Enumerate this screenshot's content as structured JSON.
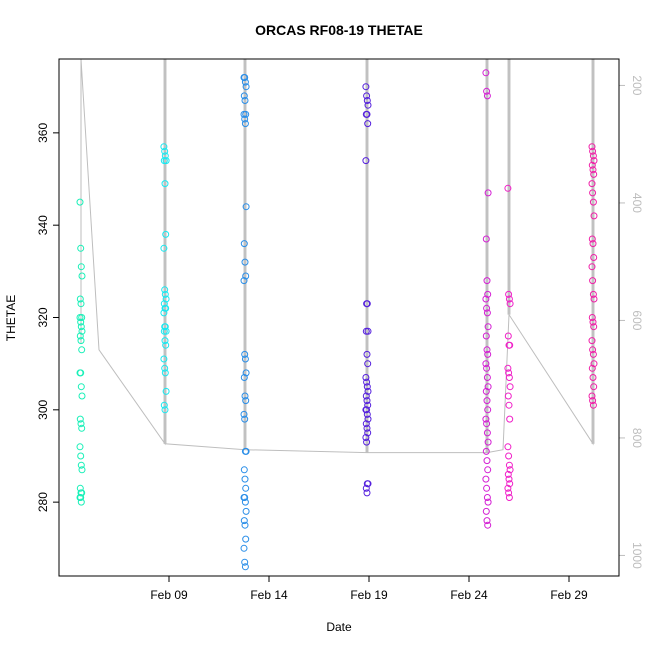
{
  "chart_data": {
    "type": "scatter",
    "title": "ORCAS RF08-19 THETAE",
    "xlabel": "Date",
    "ylabel": "THETAE",
    "xlim": [
      3.5,
      31.5
    ],
    "ylim": [
      264,
      376
    ],
    "y2lim": [
      1035,
      155
    ],
    "x_ticks": [
      {
        "value": 9,
        "label": "Feb 09"
      },
      {
        "value": 14,
        "label": "Feb 14"
      },
      {
        "value": 19,
        "label": "Feb 19"
      },
      {
        "value": 24,
        "label": "Feb 24"
      },
      {
        "value": 29,
        "label": "Feb 29"
      }
    ],
    "y_ticks": [
      280,
      300,
      320,
      340,
      360
    ],
    "y2_ticks": [
      200,
      400,
      600,
      800,
      1000
    ],
    "grid": false,
    "pressure_trace_color": "#bebebe",
    "series": [
      {
        "color": "#19f0b8",
        "x": 4.6,
        "values": [
          345,
          335,
          331,
          329,
          324,
          323,
          320,
          320,
          319,
          318,
          317,
          316,
          315,
          313,
          308,
          308,
          305,
          303,
          298,
          297,
          296,
          292,
          290,
          288,
          287,
          283,
          282,
          282,
          281,
          281,
          280
        ]
      },
      {
        "color": "#19e8f0",
        "x": 8.8,
        "values": [
          357,
          356,
          355,
          354,
          354,
          349,
          338,
          335,
          326,
          325,
          324,
          323,
          322,
          322,
          321,
          318,
          318,
          317,
          317,
          315,
          314,
          311,
          309,
          308,
          304,
          301,
          300
        ]
      },
      {
        "color": "#2a8ee8",
        "x": 12.8,
        "values": [
          372,
          372,
          371,
          370,
          368,
          367,
          364,
          364,
          363,
          362,
          344,
          336,
          332,
          329,
          328,
          312,
          311,
          308,
          307,
          303,
          302,
          299,
          298,
          291,
          291,
          287,
          285,
          283,
          281,
          281,
          280,
          278,
          276,
          275,
          272,
          270,
          267,
          266
        ]
      },
      {
        "color": "#5520dd",
        "x": 18.9,
        "values": [
          370,
          368,
          367,
          366,
          364,
          364,
          362,
          354,
          323,
          323,
          317,
          317,
          312,
          310,
          307,
          306,
          305,
          304,
          303,
          302,
          301,
          300,
          300,
          299,
          298,
          297,
          296,
          295,
          294,
          293,
          284,
          284,
          283,
          282
        ]
      },
      {
        "color": "#d420d4",
        "x": 24.9,
        "values": [
          373,
          369,
          368,
          347,
          337,
          328,
          325,
          324,
          322,
          321,
          318,
          316,
          313,
          312,
          310,
          309,
          307,
          305,
          304,
          302,
          300,
          298,
          297,
          295,
          293,
          291,
          289,
          287,
          285,
          283,
          281,
          280,
          278,
          276,
          275
        ]
      },
      {
        "color": "#f020c8",
        "x": 26.0,
        "values": [
          348,
          325,
          324,
          323,
          316,
          314,
          314,
          309,
          308,
          307,
          305,
          303,
          301,
          298,
          292,
          290,
          288,
          287,
          286,
          285,
          284,
          283,
          282,
          281
        ]
      },
      {
        "color": "#f020a8",
        "x": 30.2,
        "values": [
          357,
          356,
          355,
          354,
          353,
          352,
          351,
          349,
          347,
          345,
          342,
          337,
          336,
          333,
          331,
          328,
          325,
          324,
          320,
          319,
          318,
          315,
          313,
          312,
          310,
          309,
          307,
          305,
          303,
          302,
          301
        ]
      }
    ],
    "pressure_trace": {
      "x": [
        4.6,
        4.6,
        4.6,
        5.5,
        8.8,
        8.8,
        8.8,
        12.8,
        12.8,
        12.8,
        18.9,
        18.9,
        18.9,
        24.9,
        24.9,
        24.9,
        25.7,
        26.0,
        26.0,
        26.0,
        30.2,
        30.2,
        30.2
      ],
      "values": [
        155,
        640,
        155,
        650,
        810,
        155,
        810,
        820,
        155,
        820,
        825,
        155,
        825,
        825,
        155,
        825,
        820,
        590,
        155,
        590,
        810,
        155,
        810
      ]
    }
  }
}
